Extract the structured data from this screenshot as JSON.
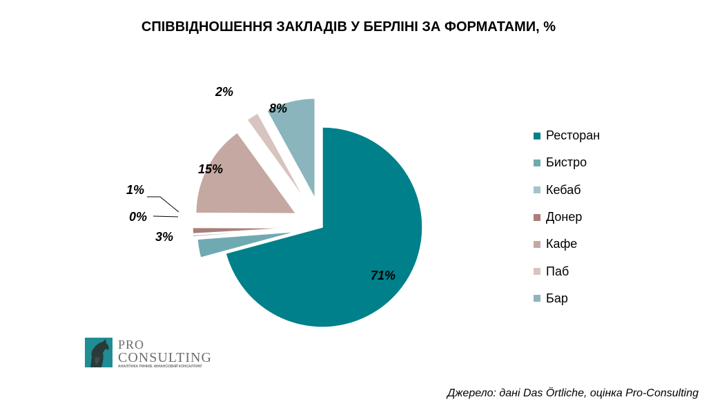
{
  "chart_data": {
    "type": "pie",
    "title": "СПІВВІДНОШЕННЯ ЗАКЛАДІВ У БЕРЛІНІ ЗА ФОРМАТАМИ, %",
    "series": [
      {
        "name": "Ресторан",
        "value": 71,
        "label": "71%",
        "color": "#00808a"
      },
      {
        "name": "Бистро",
        "value": 3,
        "label": "3%",
        "color": "#6faab2"
      },
      {
        "name": "Кебаб",
        "value": 0.3,
        "label": "0%",
        "color": "#a3c4ca"
      },
      {
        "name": "Донер",
        "value": 1,
        "label": "1%",
        "color": "#a97f7b"
      },
      {
        "name": "Кафе",
        "value": 15,
        "label": "15%",
        "color": "#c5a8a1"
      },
      {
        "name": "Паб",
        "value": 2,
        "label": "2%",
        "color": "#d8c4bf"
      },
      {
        "name": "Бар",
        "value": 8,
        "label": "8%",
        "color": "#8bb5bd"
      }
    ],
    "legend_position": "right"
  },
  "source": "Джерело: дані Das Örtliche, оцінка Pro-Consulting",
  "logo": {
    "line1": "PRO",
    "line2": "CONSULTING",
    "tagline": "АНАЛІТИКА РИНКІВ. ФІНАНСОВИЙ КОНСАЛТИНГ"
  }
}
